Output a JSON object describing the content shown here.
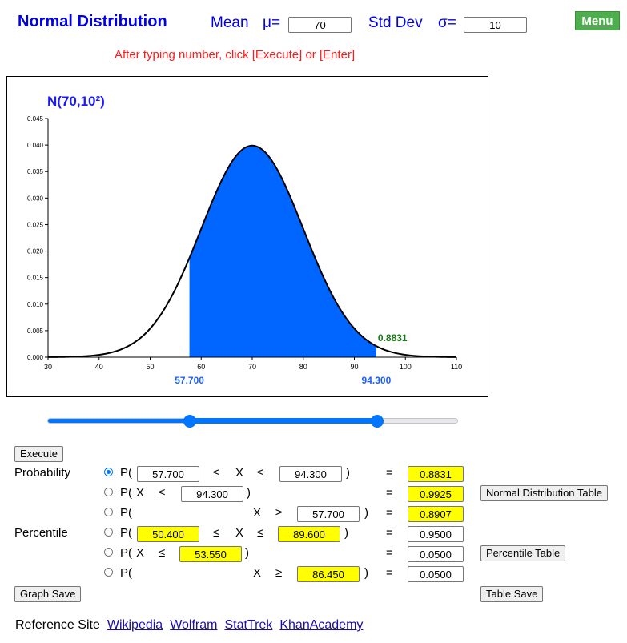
{
  "header": {
    "title": "Normal Distribution",
    "mean_label": "Mean",
    "mu_symbol": "μ=",
    "mean_value": "70",
    "sd_label": "Std Dev",
    "sigma_symbol": "σ=",
    "sd_value": "10",
    "menu_label": "Menu"
  },
  "hint": "After typing number, click [Execute] or [Enter]",
  "chart_data": {
    "type": "area",
    "title": "N(70,10²)",
    "distribution": "normal",
    "mean": 70,
    "sd": 10,
    "xlim": [
      30,
      110
    ],
    "ylim": [
      0,
      0.045
    ],
    "x_ticks": [
      "30",
      "40",
      "50",
      "60",
      "70",
      "80",
      "90",
      "100",
      "110"
    ],
    "y_ticks": [
      "0.000",
      "0.005",
      "0.010",
      "0.015",
      "0.020",
      "0.025",
      "0.030",
      "0.035",
      "0.040",
      "0.045"
    ],
    "shaded_from": 57.7,
    "shaded_to": 94.3,
    "lower_label": "57.700",
    "upper_label": "94.300",
    "area_label": "0.8831",
    "fill_color": "#0066ff",
    "curve_color": "#000000",
    "area_label_color": "#1a7a1a"
  },
  "slider": {
    "min": 30,
    "max": 110,
    "low": 57.7,
    "high": 94.3,
    "color": "#0075ff"
  },
  "controls": {
    "execute_label": "Execute",
    "probability_label": "Probability",
    "percentile_label": "Percentile",
    "p_open": "P(",
    "x": "X",
    "le": "≤",
    "ge": "≥",
    "close": ")",
    "eq": "=",
    "row1": {
      "a": "57.700",
      "b": "94.300",
      "result": "0.8831"
    },
    "row2": {
      "b": "94.300",
      "result": "0.9925"
    },
    "row3": {
      "a": "57.700",
      "result": "0.8907"
    },
    "row4": {
      "a": "50.400",
      "b": "89.600",
      "result": "0.9500"
    },
    "row5": {
      "b": "53.550",
      "result": "0.0500"
    },
    "row6": {
      "a": "86.450",
      "result": "0.0500"
    },
    "normal_table_label": "Normal Distribution Table",
    "percentile_table_label": "Percentile Table",
    "graph_save_label": "Graph Save",
    "table_save_label": "Table Save"
  },
  "reference": {
    "label": "Reference Site",
    "links": [
      "Wikipedia",
      "Wolfram",
      "StatTrek",
      "KhanAcademy"
    ]
  }
}
